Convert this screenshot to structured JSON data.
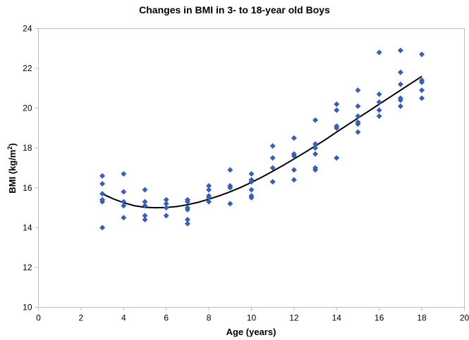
{
  "chart_data": {
    "type": "scatter",
    "title": "Changes in BMI in 3- to 18-year old Boys",
    "xlabel": "Age (years)",
    "ylabel_main": "BMI (kg/m",
    "ylabel_sup": "2",
    "ylabel_close": ")",
    "xlim": [
      0,
      20
    ],
    "ylim": [
      10,
      24
    ],
    "xticks": [
      0,
      2,
      4,
      6,
      8,
      10,
      12,
      14,
      16,
      18,
      20
    ],
    "yticks": [
      10,
      12,
      14,
      16,
      18,
      20,
      22,
      24
    ],
    "grid": false,
    "marker_color": "#3a5fb0",
    "trend_color": "#000000",
    "series": [
      {
        "points": [
          [
            3,
            16.6
          ],
          [
            3,
            16.2
          ],
          [
            3,
            15.7
          ],
          [
            3,
            15.4
          ],
          [
            3,
            15.3
          ],
          [
            3,
            14.0
          ],
          [
            4,
            16.7
          ],
          [
            4,
            15.8
          ],
          [
            4,
            15.3
          ],
          [
            4,
            15.1
          ],
          [
            4,
            14.5
          ],
          [
            5,
            15.9
          ],
          [
            5,
            15.3
          ],
          [
            5,
            15.1
          ],
          [
            5,
            14.6
          ],
          [
            5,
            14.4
          ],
          [
            6,
            15.4
          ],
          [
            6,
            15.2
          ],
          [
            6,
            15.0
          ],
          [
            6,
            14.6
          ],
          [
            7,
            15.4
          ],
          [
            7,
            15.3
          ],
          [
            7,
            15.0
          ],
          [
            7,
            14.9
          ],
          [
            7,
            14.4
          ],
          [
            7,
            14.2
          ],
          [
            8,
            16.1
          ],
          [
            8,
            15.9
          ],
          [
            8,
            15.6
          ],
          [
            8,
            15.5
          ],
          [
            8,
            15.3
          ],
          [
            9,
            16.9
          ],
          [
            9,
            16.1
          ],
          [
            9,
            16.0
          ],
          [
            9,
            15.2
          ],
          [
            10,
            16.7
          ],
          [
            10,
            16.4
          ],
          [
            10,
            16.3
          ],
          [
            10,
            15.9
          ],
          [
            10,
            15.6
          ],
          [
            10,
            15.5
          ],
          [
            11,
            18.1
          ],
          [
            11,
            17.5
          ],
          [
            11,
            17.0
          ],
          [
            11,
            16.3
          ],
          [
            12,
            18.5
          ],
          [
            12,
            17.7
          ],
          [
            12,
            17.6
          ],
          [
            12,
            16.9
          ],
          [
            12,
            16.4
          ],
          [
            13,
            19.4
          ],
          [
            13,
            18.2
          ],
          [
            13,
            18.0
          ],
          [
            13,
            17.7
          ],
          [
            13,
            17.0
          ],
          [
            13,
            16.9
          ],
          [
            14,
            20.2
          ],
          [
            14,
            19.9
          ],
          [
            14,
            19.1
          ],
          [
            14,
            19.0
          ],
          [
            14,
            17.5
          ],
          [
            15,
            20.9
          ],
          [
            15,
            20.1
          ],
          [
            15,
            19.6
          ],
          [
            15,
            19.3
          ],
          [
            15,
            19.2
          ],
          [
            15,
            18.8
          ],
          [
            16,
            22.8
          ],
          [
            16,
            20.7
          ],
          [
            16,
            20.3
          ],
          [
            16,
            19.9
          ],
          [
            16,
            19.6
          ],
          [
            17,
            22.9
          ],
          [
            17,
            21.8
          ],
          [
            17,
            21.2
          ],
          [
            17,
            20.5
          ],
          [
            17,
            20.4
          ],
          [
            17,
            20.1
          ],
          [
            18,
            22.7
          ],
          [
            18,
            21.4
          ],
          [
            18,
            21.3
          ],
          [
            18,
            20.9
          ],
          [
            18,
            20.5
          ]
        ]
      }
    ],
    "trendline": {
      "type": "polynomial",
      "x": [
        3,
        3.5,
        4,
        4.5,
        5,
        5.5,
        6,
        6.5,
        7,
        7.5,
        8,
        8.5,
        9,
        9.5,
        10,
        10.5,
        11,
        11.5,
        12,
        12.5,
        13,
        13.5,
        14,
        14.5,
        15,
        15.5,
        16,
        16.5,
        17,
        17.5,
        18
      ],
      "y": [
        15.7,
        15.45,
        15.25,
        15.1,
        15.02,
        15.0,
        15.01,
        15.06,
        15.15,
        15.27,
        15.43,
        15.6,
        15.8,
        16.02,
        16.27,
        16.54,
        16.83,
        17.13,
        17.45,
        17.77,
        18.1,
        18.44,
        18.8,
        19.15,
        19.5,
        19.85,
        20.2,
        20.55,
        20.9,
        21.25,
        21.6
      ]
    }
  }
}
